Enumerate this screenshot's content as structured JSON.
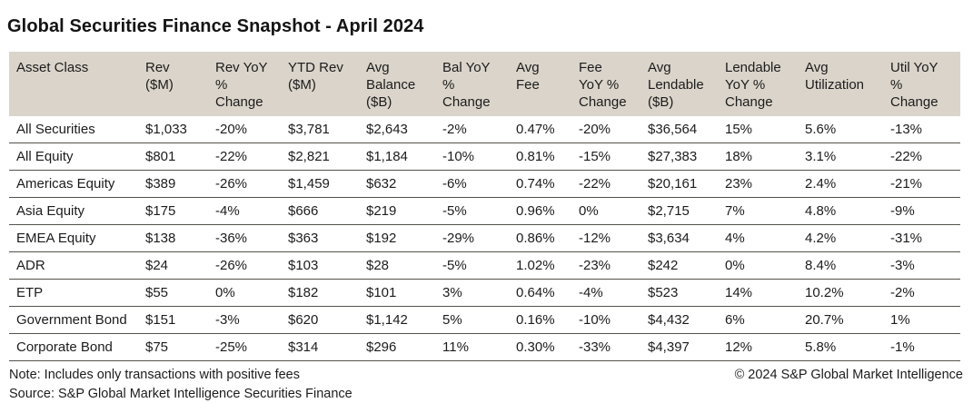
{
  "title": "Global Securities Finance Snapshot - April 2024",
  "chart_data": {
    "type": "table",
    "title": "Global Securities Finance Snapshot - April 2024",
    "columns": [
      "Asset Class",
      "Rev\n($M)",
      "Rev YoY\n%\nChange",
      "YTD Rev\n($M)",
      "Avg\nBalance\n($B)",
      "Bal YoY\n%\nChange",
      "Avg\nFee",
      "Fee\nYoY %\nChange",
      "Avg\nLendable\n($B)",
      "Lendable\nYoY %\nChange",
      "Avg\nUtilization",
      "Util YoY\n%\nChange"
    ],
    "rows": [
      [
        "All Securities",
        "$1,033",
        "-20%",
        "$3,781",
        "$2,643",
        "-2%",
        "0.47%",
        "-20%",
        "$36,564",
        "15%",
        "5.6%",
        "-13%"
      ],
      [
        "All Equity",
        "$801",
        "-22%",
        "$2,821",
        "$1,184",
        "-10%",
        "0.81%",
        "-15%",
        "$27,383",
        "18%",
        "3.1%",
        "-22%"
      ],
      [
        "Americas Equity",
        "$389",
        "-26%",
        "$1,459",
        "$632",
        "-6%",
        "0.74%",
        "-22%",
        "$20,161",
        "23%",
        "2.4%",
        "-21%"
      ],
      [
        "Asia Equity",
        "$175",
        "-4%",
        "$666",
        "$219",
        "-5%",
        "0.96%",
        "0%",
        "$2,715",
        "7%",
        "4.8%",
        "-9%"
      ],
      [
        "EMEA Equity",
        "$138",
        "-36%",
        "$363",
        "$192",
        "-29%",
        "0.86%",
        "-12%",
        "$3,634",
        "4%",
        "4.2%",
        "-31%"
      ],
      [
        "ADR",
        "$24",
        "-26%",
        "$103",
        "$28",
        "-5%",
        "1.02%",
        "-23%",
        "$242",
        "0%",
        "8.4%",
        "-3%"
      ],
      [
        "ETP",
        "$55",
        "0%",
        "$182",
        "$101",
        "3%",
        "0.64%",
        "-4%",
        "$523",
        "14%",
        "10.2%",
        "-2%"
      ],
      [
        "Government Bond",
        "$151",
        "-3%",
        "$620",
        "$1,142",
        "5%",
        "0.16%",
        "-10%",
        "$4,432",
        "6%",
        "20.7%",
        "1%"
      ],
      [
        "Corporate Bond",
        "$75",
        "-25%",
        "$314",
        "$296",
        "11%",
        "0.30%",
        "-33%",
        "$4,397",
        "12%",
        "5.8%",
        "-1%"
      ]
    ]
  },
  "footer": {
    "note": "Note: Includes only transactions with positive fees",
    "source": "Source: S&P Global Market Intelligence Securities Finance",
    "copyright": "© 2024 S&P Global Market Intelligence"
  },
  "colors": {
    "header_bg": "#dad4ca",
    "row_border": "#55524b",
    "text": "#1c1c1c"
  }
}
